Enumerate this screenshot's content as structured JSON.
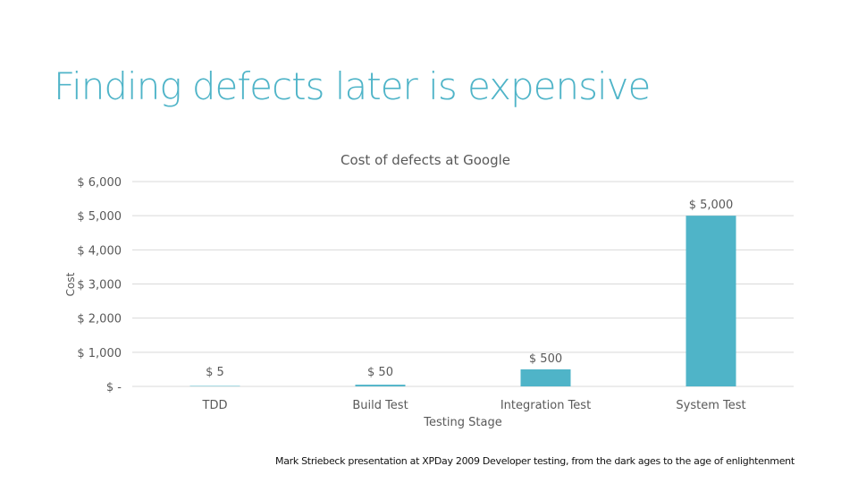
{
  "slide": {
    "title": "Finding defects later is expensive",
    "footer": "Mark Striebeck presentation at XPDay 2009 Developer testing, from the dark ages to the age of enlightenment"
  },
  "colors": {
    "title": "#4fb4c8",
    "bar": "#4fb4c8",
    "text": "#595959",
    "grid": "#d9d9d9"
  },
  "chart_data": {
    "type": "bar",
    "title": "Cost of defects at Google",
    "xlabel": "Testing Stage",
    "ylabel": "Cost",
    "categories": [
      "TDD",
      "Build Test",
      "Integration Test",
      "System Test"
    ],
    "values": [
      5,
      50,
      500,
      5000
    ],
    "data_labels": [
      "$ 5",
      "$ 50",
      "$ 500",
      "$ 5,000"
    ],
    "ylim": [
      0,
      6000
    ],
    "yticks": [
      0,
      1000,
      2000,
      3000,
      4000,
      5000,
      6000
    ],
    "ytick_labels": [
      "$ -",
      "$ 1,000",
      "$ 2,000",
      "$ 3,000",
      "$ 4,000",
      "$ 5,000",
      "$ 6,000"
    ],
    "grid": true,
    "legend": "none"
  }
}
